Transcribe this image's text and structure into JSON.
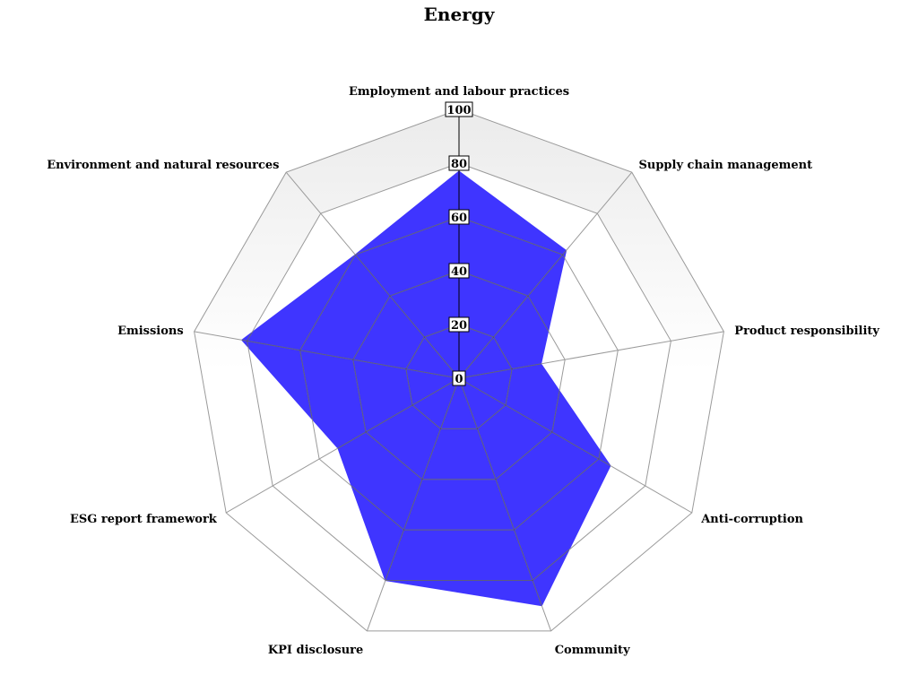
{
  "chart_data": {
    "type": "radar",
    "title": "Energy",
    "axes": [
      "Employment and labour practices",
      "Supply chain management",
      "Product responsibility",
      "Anti-corruption",
      "Community",
      "KPI disclosure",
      "ESG report framework",
      "Emissions",
      "Environment and natural resources"
    ],
    "series": [
      {
        "values": [
          77,
          62,
          31,
          65,
          90,
          80,
          52,
          82,
          60
        ]
      }
    ],
    "radial_ticks": [
      "0",
      "20",
      "40",
      "60",
      "80",
      "100"
    ],
    "rlim": [
      0,
      100
    ],
    "grid": true,
    "legend": "none",
    "colors": {
      "series_fill": "#3f35ff",
      "outer_band_top": "#ebebeb",
      "outer_band_bottom": "#ffffff",
      "grid": "#9a9a9a"
    }
  }
}
